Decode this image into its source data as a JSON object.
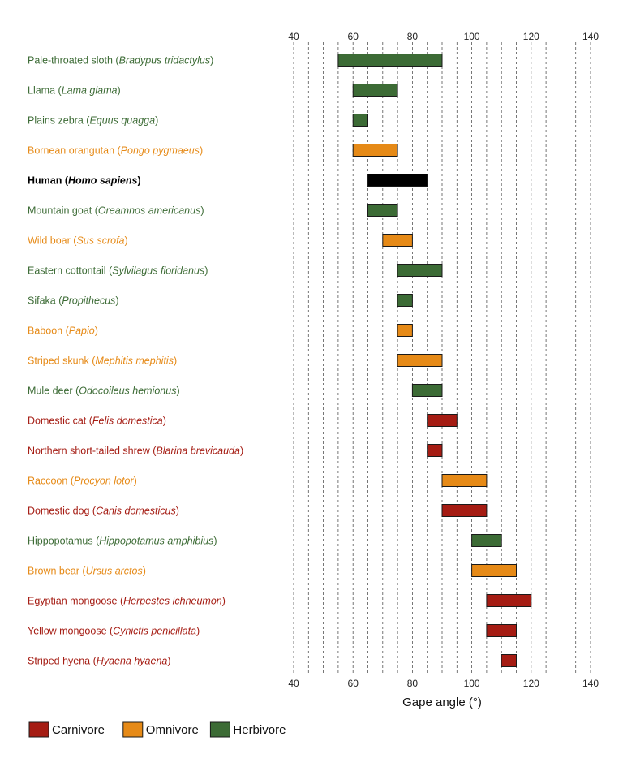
{
  "chart_data": {
    "type": "bar",
    "subtype": "floating-range",
    "title": "",
    "xlabel": "Gape angle (°)",
    "ylabel": "",
    "xlim": [
      40,
      140
    ],
    "major_ticks": [
      40,
      60,
      80,
      100,
      120,
      140
    ],
    "minor_tick_step": 5,
    "grid": "dashed vertical every 5°",
    "legend_position": "bottom-left",
    "colors": {
      "carnivore": "#a51c13",
      "omnivore": "#e68a17",
      "herbivore": "#3c6b35",
      "human": "#000000"
    },
    "legend": [
      {
        "key": "carnivore",
        "label": "Carnivore"
      },
      {
        "key": "omnivore",
        "label": "Omnivore"
      },
      {
        "key": "herbivore",
        "label": "Herbivore"
      }
    ],
    "series": [
      {
        "common": "Pale-throated sloth",
        "sci": "Bradypus tridactylus",
        "diet": "herbivore",
        "min": 55,
        "max": 90
      },
      {
        "common": "Llama",
        "sci": "Lama glama",
        "diet": "herbivore",
        "min": 60,
        "max": 75
      },
      {
        "common": "Plains zebra",
        "sci": "Equus quagga",
        "diet": "herbivore",
        "min": 60,
        "max": 65
      },
      {
        "common": "Bornean orangutan",
        "sci": "Pongo pygmaeus",
        "diet": "omnivore",
        "min": 60,
        "max": 75
      },
      {
        "common": "Human",
        "sci": "Homo sapiens",
        "diet": "human",
        "min": 65,
        "max": 85
      },
      {
        "common": "Mountain goat",
        "sci": "Oreamnos americanus",
        "diet": "herbivore",
        "min": 65,
        "max": 75
      },
      {
        "common": "Wild boar",
        "sci": "Sus scrofa",
        "diet": "omnivore",
        "min": 70,
        "max": 80
      },
      {
        "common": "Eastern cottontail",
        "sci": "Sylvilagus floridanus",
        "diet": "herbivore",
        "min": 75,
        "max": 90
      },
      {
        "common": "Sifaka",
        "sci": "Propithecus",
        "diet": "herbivore",
        "min": 75,
        "max": 80
      },
      {
        "common": "Baboon",
        "sci": "Papio",
        "diet": "omnivore",
        "min": 75,
        "max": 80
      },
      {
        "common": "Striped skunk",
        "sci": "Mephitis mephitis",
        "diet": "omnivore",
        "min": 75,
        "max": 90
      },
      {
        "common": "Mule deer",
        "sci": "Odocoileus hemionus",
        "diet": "herbivore",
        "min": 80,
        "max": 90
      },
      {
        "common": "Domestic cat",
        "sci": "Felis domestica",
        "diet": "carnivore",
        "min": 85,
        "max": 95
      },
      {
        "common": "Northern short-tailed shrew",
        "sci": "Blarina brevicauda",
        "diet": "carnivore",
        "min": 85,
        "max": 90
      },
      {
        "common": "Raccoon",
        "sci": "Procyon lotor",
        "diet": "omnivore",
        "min": 90,
        "max": 105
      },
      {
        "common": "Domestic dog",
        "sci": "Canis domesticus",
        "diet": "carnivore",
        "min": 90,
        "max": 105
      },
      {
        "common": "Hippopotamus",
        "sci": "Hippopotamus amphibius",
        "diet": "herbivore",
        "min": 100,
        "max": 110
      },
      {
        "common": "Brown bear",
        "sci": "Ursus arctos",
        "diet": "omnivore",
        "min": 100,
        "max": 115
      },
      {
        "common": "Egyptian mongoose",
        "sci": "Herpestes ichneumon",
        "diet": "carnivore",
        "min": 105,
        "max": 120
      },
      {
        "common": "Yellow mongoose",
        "sci": "Cynictis penicillata",
        "diet": "carnivore",
        "min": 105,
        "max": 115
      },
      {
        "common": "Striped hyena",
        "sci": "Hyaena hyaena",
        "diet": "carnivore",
        "min": 110,
        "max": 115
      }
    ]
  }
}
